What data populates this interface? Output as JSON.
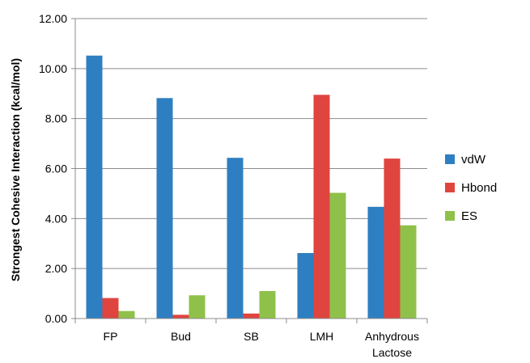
{
  "chart_data": {
    "type": "bar",
    "title": "",
    "xlabel": "",
    "ylabel": "Strongest Cohesive Interaction (kcal/mol)",
    "ylim": [
      0,
      12
    ],
    "y_ticks": [
      "0.00",
      "2.00",
      "4.00",
      "6.00",
      "8.00",
      "10.00",
      "12.00"
    ],
    "categories": [
      [
        "FP"
      ],
      [
        "Bud"
      ],
      [
        "SB"
      ],
      [
        "LMH"
      ],
      [
        "Anhydrous",
        "Lactose"
      ]
    ],
    "series": [
      {
        "name": "vdW",
        "color": "#2e7fc1",
        "values": [
          10.52,
          8.82,
          6.43,
          2.62,
          4.47
        ]
      },
      {
        "name": "Hbond",
        "color": "#e0443f",
        "values": [
          0.82,
          0.15,
          0.2,
          8.95,
          6.4
        ]
      },
      {
        "name": "ES",
        "color": "#8fc14a",
        "values": [
          0.3,
          0.93,
          1.1,
          5.03,
          3.73
        ]
      }
    ],
    "grid": true,
    "legend_position": "right"
  }
}
